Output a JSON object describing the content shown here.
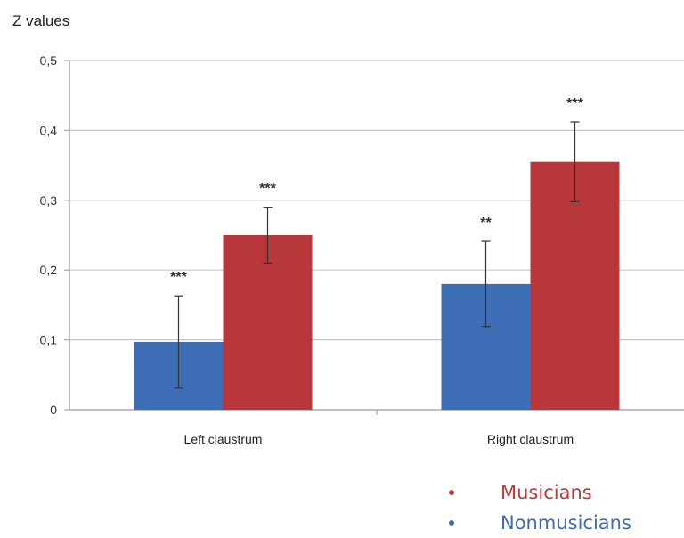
{
  "chart_data": {
    "type": "bar",
    "ylabel": "Z values",
    "ylim": [
      0,
      0.5
    ],
    "y_ticks": [
      "0",
      "0,1",
      "0,2",
      "0,3",
      "0,4",
      "0,5"
    ],
    "y_tick_values": [
      0,
      0.1,
      0.2,
      0.3,
      0.4,
      0.5
    ],
    "grid": true,
    "categories": [
      "Left claustrum",
      "Right claustrum"
    ],
    "series": [
      {
        "name": "Nonmusicians",
        "color": "#3d6db5",
        "values": [
          0.097,
          0.18
        ],
        "error": [
          0.066,
          0.061
        ],
        "significance": [
          "***",
          "**"
        ]
      },
      {
        "name": "Musicians",
        "color": "#b8373a",
        "values": [
          0.25,
          0.355
        ],
        "error": [
          0.04,
          0.057
        ],
        "significance": [
          "***",
          "***"
        ]
      }
    ],
    "legend": {
      "placement": "bottom-right",
      "items": [
        {
          "label": "Musicians",
          "color": "#c0393c"
        },
        {
          "label": "Nonmusicians",
          "color": "#3d6db5"
        }
      ]
    }
  }
}
